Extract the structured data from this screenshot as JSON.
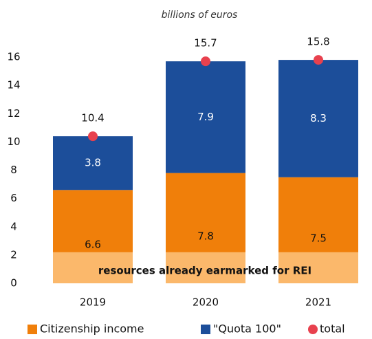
{
  "chart_data": {
    "type": "stacked_bar",
    "subtitle": "billions of euros",
    "categories": [
      "2019",
      "2020",
      "2021"
    ],
    "series": [
      {
        "name": "Citizenship income",
        "color": "#f07f0a",
        "label_color": "#111111",
        "values": [
          6.6,
          7.8,
          7.5
        ]
      },
      {
        "name": "\"Quota 100\"",
        "color": "#1c4e9a",
        "label_color": "#ffffff",
        "values": [
          3.8,
          7.9,
          8.3
        ]
      }
    ],
    "total": {
      "name": "total",
      "color": "#e8414e",
      "values": [
        10.4,
        15.7,
        15.8
      ]
    },
    "earmarked": {
      "label": "resources already earmarked for REI",
      "color": "#fbb86b",
      "values": [
        2.2,
        2.2,
        2.2
      ]
    },
    "ylim": [
      0,
      16
    ],
    "yticks": [
      0,
      2,
      4,
      6,
      8,
      10,
      12,
      14,
      16
    ]
  }
}
